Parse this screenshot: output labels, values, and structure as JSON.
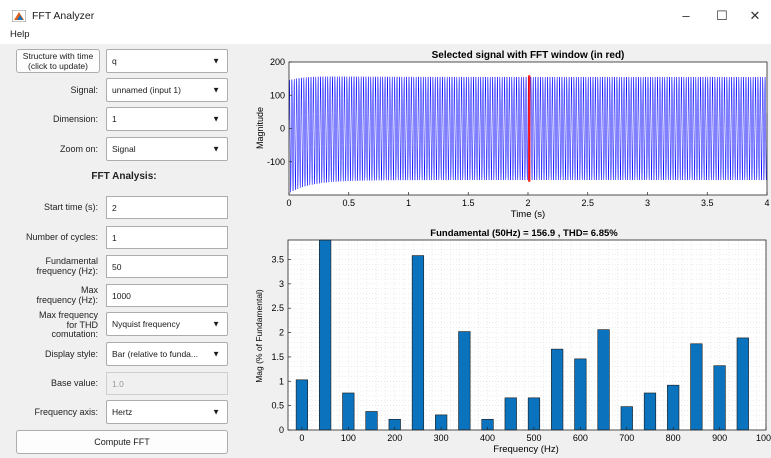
{
  "window": {
    "title": "FFT Analyzer",
    "minimize": "–",
    "maximize": "☐",
    "close": "✕"
  },
  "menu": {
    "help": "Help"
  },
  "controls": {
    "structure_button": "Structure with time\n(click to update)",
    "structure_value": "q",
    "signal_label": "Signal:",
    "signal_value": "unnamed (input 1)",
    "dimension_label": "Dimension:",
    "dimension_value": "1",
    "zoom_label": "Zoom on:",
    "zoom_value": "Signal",
    "fft_heading": "FFT Analysis:",
    "start_time_label": "Start time (s):",
    "start_time_value": "2",
    "cycles_label": "Number of cycles:",
    "cycles_value": "1",
    "fund_freq_label": "Fundamental\nfrequency (Hz):",
    "fund_freq_value": "50",
    "max_freq_label": "Max\nfrequency (Hz):",
    "max_freq_value": "1000",
    "thd_label": "Max frequency\nfor THD\ncomutation:",
    "thd_value": "Nyquist frequency",
    "display_style_label": "Display style:",
    "display_style_value": "Bar (relative to funda...",
    "base_value_label": "Base value:",
    "base_value_value": "1.0",
    "freq_axis_label": "Frequency axis:",
    "freq_axis_value": "Hertz",
    "compute_button": "Compute FFT"
  },
  "icons": {
    "dropdown": "triangle-down-icon",
    "app": "app-logo-icon"
  },
  "chart_data": [
    {
      "type": "line",
      "title": "Selected signal with FFT window (in red)",
      "xlabel": "Time (s)",
      "ylabel": "Magnitude",
      "xlim": [
        0,
        4
      ],
      "ylim": [
        -200,
        200
      ],
      "xticks": [
        "0",
        "0.5",
        "1",
        "1.5",
        "2",
        "2.5",
        "3",
        "3.5",
        "4"
      ],
      "yticks": [
        "-100",
        "0",
        "100",
        "200"
      ],
      "series": [
        {
          "envelope_start": 170,
          "envelope_steady": 155,
          "frequency_hz": 50
        }
      ],
      "fft_window": [
        2.0,
        2.02
      ],
      "colors": {
        "signal": "#0000ff",
        "window": "#ff0000"
      }
    },
    {
      "type": "bar",
      "title": "Fundamental (50Hz) = 156.9 , THD= 6.85%",
      "xlabel": "Frequency (Hz)",
      "ylabel": "Mag (% of Fundamental)",
      "ylim": [
        0,
        3.9
      ],
      "xlim": [
        -30,
        1000
      ],
      "xticks": [
        "0",
        "100",
        "200",
        "300",
        "400",
        "500",
        "600",
        "700",
        "800",
        "900",
        "1000"
      ],
      "yticks": [
        "0",
        "0.5",
        "1",
        "1.5",
        "2",
        "2.5",
        "3",
        "3.5"
      ],
      "x": [
        0,
        50,
        100,
        150,
        200,
        250,
        300,
        350,
        400,
        450,
        500,
        550,
        600,
        650,
        700,
        750,
        800,
        850,
        900,
        950
      ],
      "values": [
        1.03,
        3.9,
        0.76,
        0.38,
        0.22,
        3.58,
        0.31,
        2.02,
        0.22,
        0.66,
        0.66,
        1.66,
        1.46,
        2.06,
        0.48,
        0.76,
        0.92,
        1.77,
        1.32,
        1.89
      ],
      "colors": {
        "bar": "#0b72bd"
      }
    }
  ]
}
